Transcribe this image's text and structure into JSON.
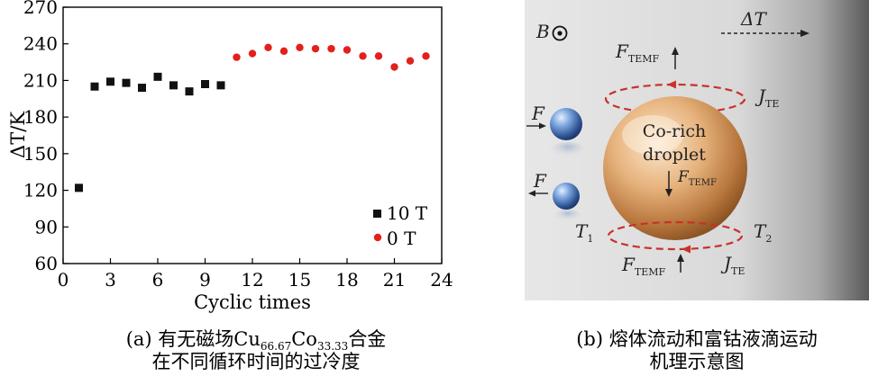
{
  "chart_data": {
    "type": "scatter",
    "xlabel": "Cyclic times",
    "ylabel": "ΔT/K",
    "xlim": [
      0,
      24
    ],
    "ylim": [
      60,
      270
    ],
    "xticks": [
      0,
      3,
      6,
      9,
      12,
      15,
      18,
      21,
      24
    ],
    "yticks": [
      60,
      90,
      120,
      150,
      180,
      210,
      240,
      270
    ],
    "legend_position": "bottom-right",
    "series": [
      {
        "name": "10 T",
        "color": "#111111",
        "marker": "square",
        "x": [
          1,
          2,
          3,
          4,
          5,
          6,
          7,
          8,
          9,
          10
        ],
        "y": [
          122,
          205,
          209,
          208,
          204,
          213,
          206,
          201,
          207,
          206
        ]
      },
      {
        "name": "0 T",
        "color": "#e3201b",
        "marker": "circle",
        "x": [
          11,
          12,
          13,
          14,
          15,
          16,
          17,
          18,
          19,
          20,
          21,
          22,
          23
        ],
        "y": [
          229,
          232,
          237,
          234,
          237,
          236,
          236,
          235,
          230,
          230,
          221,
          226,
          230
        ]
      }
    ]
  },
  "caption_a": {
    "prefix": "(a) 有无磁场Cu",
    "sub1": "66.67",
    "mid": "Co",
    "sub2": "33.33",
    "suffix": "合金",
    "line2": "在不同循环时间的过冷度"
  },
  "caption_b": {
    "line1": "(b) 熔体流动和富钴液滴运动",
    "line2": "机理示意图"
  },
  "diagram": {
    "b_label": "B",
    "delta_t": "ΔT",
    "droplet_line1": "Co-rich",
    "droplet_line2": "droplet",
    "force": "F",
    "temf_sub": "TEMF",
    "j": "J",
    "te_sub": "TE",
    "t": "T",
    "t1_sub": "1",
    "t2_sub": "2"
  }
}
